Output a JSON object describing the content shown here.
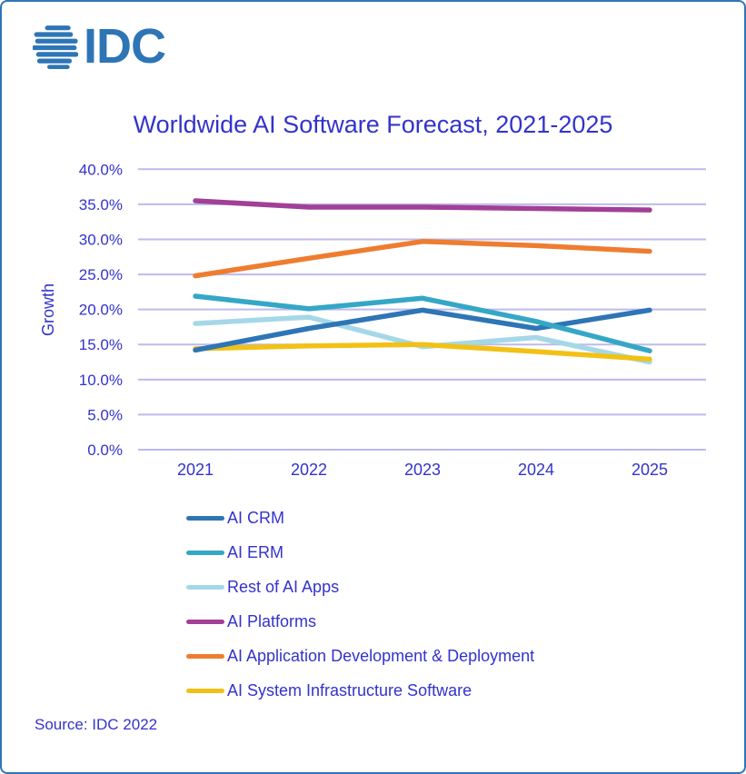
{
  "logo": {
    "text": "IDC",
    "icon": "idc-globe-icon",
    "color": "#2E75B6"
  },
  "title": "Worldwide AI Software Forecast, 2021-2025",
  "source": "Source: IDC 2022",
  "colors": {
    "text": "#3333CC",
    "grid": "#BDBAEE",
    "border": "#2E75B6",
    "background": "#FFFFFF"
  },
  "chart_data": {
    "type": "line",
    "title": "Worldwide AI Software Forecast, 2021-2025",
    "xlabel": "",
    "ylabel": "Growth",
    "categories": [
      "2021",
      "2022",
      "2023",
      "2024",
      "2025"
    ],
    "ylim": [
      0,
      40
    ],
    "ytick_step": 5,
    "ytick_labels": [
      "0.0%",
      "5.0%",
      "10.0%",
      "15.0%",
      "20.0%",
      "25.0%",
      "30.0%",
      "35.0%",
      "40.0%"
    ],
    "grid": true,
    "legend_position": "bottom-left",
    "series": [
      {
        "name": "AI CRM",
        "color": "#2E75B6",
        "values": [
          14.2,
          17.3,
          19.9,
          17.3,
          19.9
        ]
      },
      {
        "name": "AI ERM",
        "color": "#35A7C6",
        "values": [
          21.9,
          20.1,
          21.6,
          18.3,
          14.1
        ]
      },
      {
        "name": "Rest of AI Apps",
        "color": "#A5D8E7",
        "values": [
          18.0,
          18.9,
          14.7,
          16.0,
          12.5
        ]
      },
      {
        "name": "AI Platforms",
        "color": "#A23F97",
        "values": [
          35.5,
          34.6,
          34.6,
          34.4,
          34.2
        ]
      },
      {
        "name": "AI Application Development & Deployment",
        "color": "#EE7D30",
        "values": [
          24.8,
          27.3,
          29.7,
          29.1,
          28.3
        ]
      },
      {
        "name": "AI System Infrastructure Software",
        "color": "#F1C116",
        "values": [
          14.4,
          14.8,
          15.0,
          14.0,
          12.9
        ]
      }
    ]
  }
}
